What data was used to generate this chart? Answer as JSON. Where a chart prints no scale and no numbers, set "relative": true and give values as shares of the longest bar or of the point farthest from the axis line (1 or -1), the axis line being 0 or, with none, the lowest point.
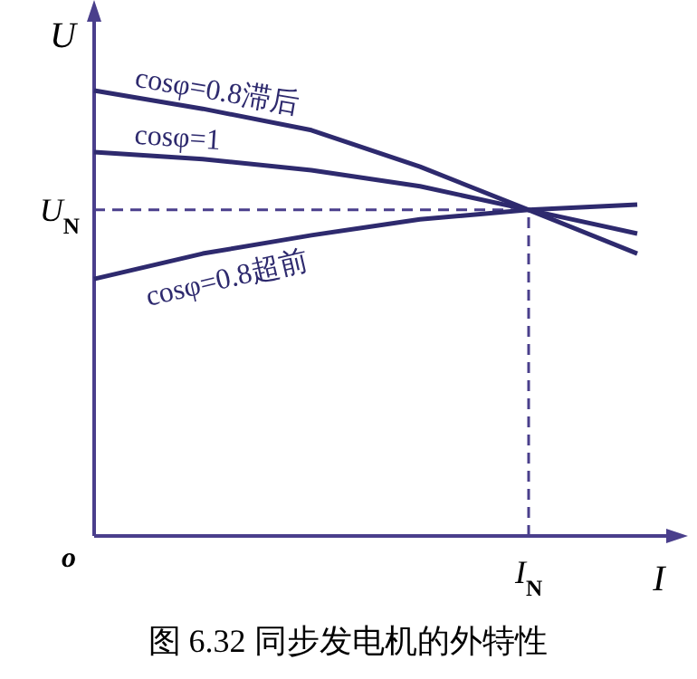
{
  "chart_data": {
    "type": "line",
    "title": "图 6.32  同步发电机的外特性",
    "xlabel": "I",
    "ylabel": "U",
    "annotations": [
      "o"
    ],
    "relative": true,
    "marker": "none",
    "line_style": "solid",
    "categories": [
      null,
      null,
      null,
      null,
      null,
      null
    ],
    "ref_lines": [
      {
        "axis": "y",
        "value": 0.732,
        "label": "U$_{N}$",
        "line_style": "dashed"
      },
      {
        "axis": "x",
        "label": "I$_{N}$",
        "line_style": "dashed"
      }
    ],
    "series": [
      {
        "name": "cosφ=0.8滞后",
        "color": "#2e2a6e",
        "values": [
          1.0,
          0.959,
          0.911,
          0.829,
          0.732,
          0.634
        ]
      },
      {
        "name": "cosφ=1",
        "color": "#2e2a6e",
        "values": [
          0.862,
          0.846,
          0.821,
          0.785,
          0.732,
          0.679
        ]
      },
      {
        "name": "cosφ=0.8超前",
        "color": "#2e2a6e",
        "values": [
          0.577,
          0.634,
          0.675,
          0.711,
          0.732,
          0.744
        ]
      }
    ]
  }
}
